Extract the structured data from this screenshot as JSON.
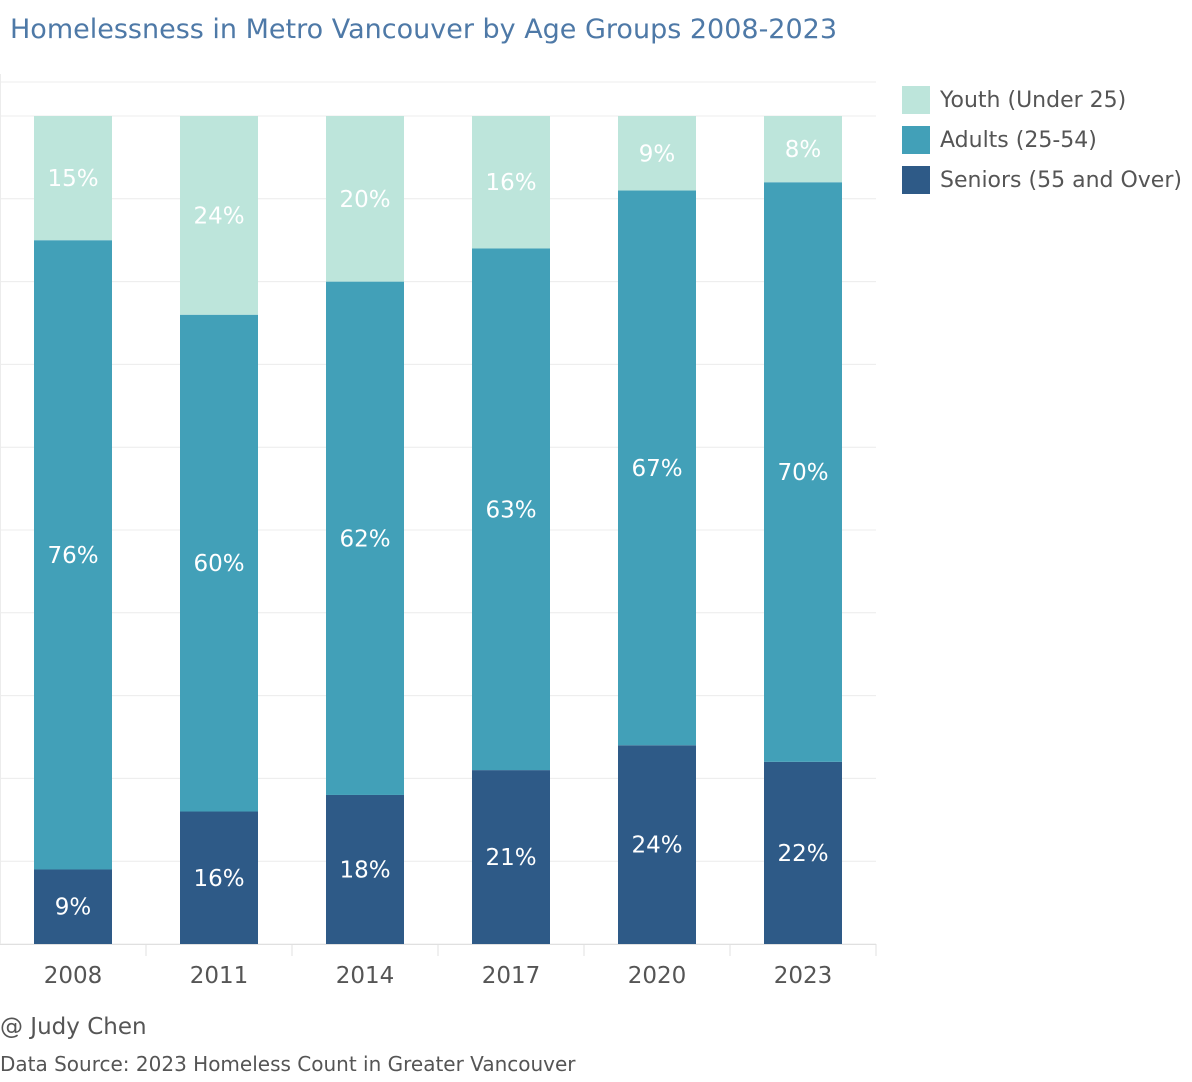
{
  "title": "Homelessness in Metro Vancouver by Age Groups 2008-2023",
  "footer": {
    "credit": "@ Judy Chen",
    "source": "Data Source: 2023 Homeless Count in Greater Vancouver"
  },
  "chart_data": {
    "type": "bar",
    "stacked": true,
    "title": "Homelessness in Metro Vancouver by Age Groups 2008-2023",
    "xlabel": "",
    "ylabel": "",
    "ylim": [
      0,
      100
    ],
    "grid": true,
    "legend_position": "top-right",
    "categories": [
      "2008",
      "2011",
      "2014",
      "2017",
      "2020",
      "2023"
    ],
    "series": [
      {
        "name": "Seniors (55 and Over)",
        "color": "#2e5a87",
        "values": [
          9,
          16,
          18,
          21,
          24,
          22
        ],
        "labels": [
          "9%",
          "16%",
          "18%",
          "21%",
          "24%",
          "22%"
        ]
      },
      {
        "name": "Adults (25-54)",
        "color": "#42a0b8",
        "values": [
          76,
          60,
          62,
          63,
          67,
          70
        ],
        "labels": [
          "76%",
          "60%",
          "62%",
          "63%",
          "67%",
          "70%"
        ]
      },
      {
        "name": "Youth (Under 25)",
        "color": "#bde5db",
        "values": [
          15,
          24,
          20,
          16,
          9,
          8
        ],
        "labels": [
          "15%",
          "24%",
          "20%",
          "16%",
          "9%",
          "8%"
        ]
      }
    ],
    "legend_order": [
      "Youth (Under 25)",
      "Adults (25-54)",
      "Seniors (55 and Over)"
    ]
  }
}
